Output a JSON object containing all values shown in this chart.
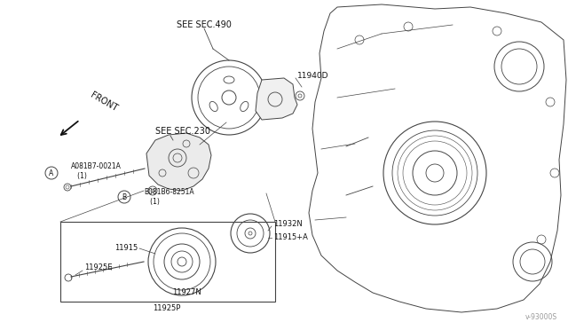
{
  "bg_color": "#ffffff",
  "line_color": "#444444",
  "text_color": "#222222",
  "fig_width": 6.4,
  "fig_height": 3.72,
  "dpi": 100,
  "watermark": "v-93000S",
  "labels": {
    "see_sec_490": "SEE SEC.490",
    "see_sec_230": "SEE SEC.230",
    "part_11940D": "11940D",
    "part_A081B7": "A081B7-0021A\n   (1)",
    "part_B081B6": "B081B6-8251A\n   (1)",
    "part_11932N": "11932N",
    "part_11915": "11915",
    "part_11915A": "11915+A",
    "part_11925E": "11925E",
    "part_11927N": "11927N",
    "part_11925P": "11925P",
    "front_label": "FRONT"
  }
}
